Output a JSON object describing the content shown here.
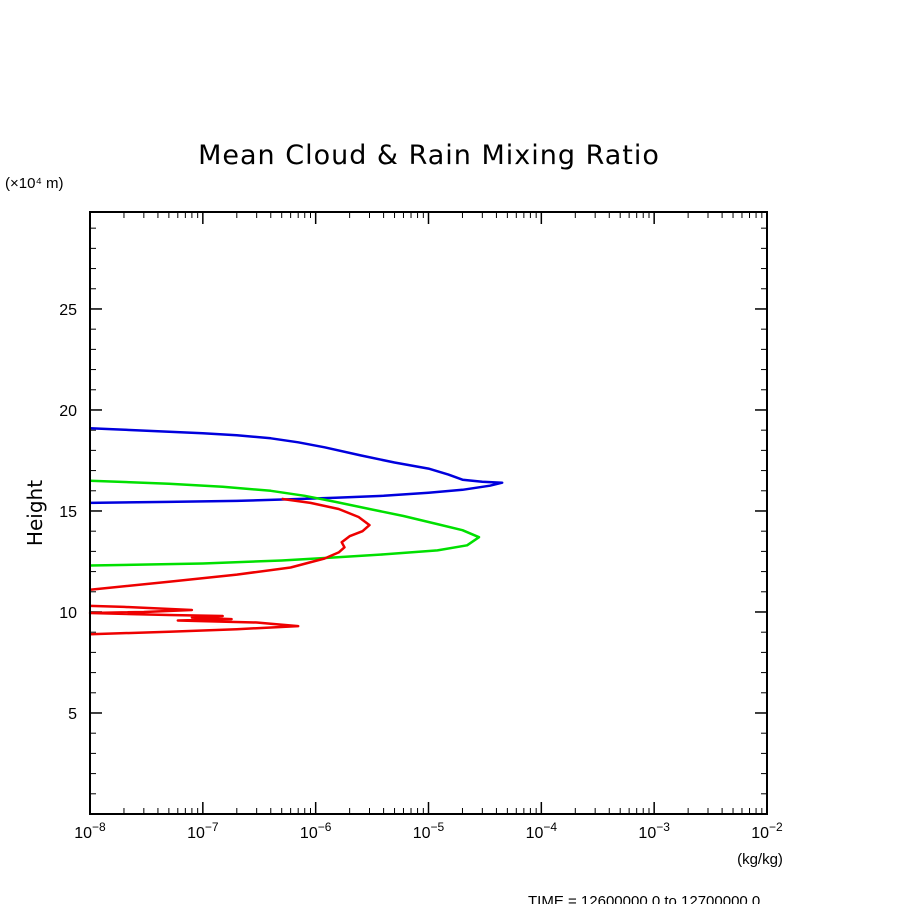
{
  "chart_data": {
    "type": "line",
    "title": "Mean Cloud & Rain Mixing Ratio",
    "xlabel": "(kg/kg)",
    "ylabel": "Height",
    "y_unit_label": "(×10⁴ m)",
    "x_scale": "log",
    "xlim": [
      1e-08,
      0.01
    ],
    "ylim": [
      0,
      29.8
    ],
    "grid": false,
    "x_tick_labels": [
      {
        "value": 1e-08,
        "base": "10",
        "exp": "−8"
      },
      {
        "value": 1e-07,
        "base": "10",
        "exp": "−7"
      },
      {
        "value": 1e-06,
        "base": "10",
        "exp": "−6"
      },
      {
        "value": 1e-05,
        "base": "10",
        "exp": "−5"
      },
      {
        "value": 0.0001,
        "base": "10",
        "exp": "−4"
      },
      {
        "value": 0.001,
        "base": "10",
        "exp": "−3"
      },
      {
        "value": 0.01,
        "base": "10",
        "exp": "−2"
      }
    ],
    "y_tick_labels": [
      "5",
      "10",
      "15",
      "20",
      "25"
    ],
    "y_tick_values": [
      5,
      10,
      15,
      20,
      25
    ],
    "footer": "TIME = 12600000.0 to 12700000.0",
    "series": [
      {
        "color": "#0000dd",
        "points": [
          [
            1e-08,
            19.1
          ],
          [
            1.6e-08,
            19.05
          ],
          [
            4e-08,
            18.95
          ],
          [
            1e-07,
            18.85
          ],
          [
            2e-07,
            18.75
          ],
          [
            4e-07,
            18.6
          ],
          [
            7e-07,
            18.4
          ],
          [
            1.2e-06,
            18.15
          ],
          [
            2.5e-06,
            17.75
          ],
          [
            5e-06,
            17.4
          ],
          [
            1e-05,
            17.1
          ],
          [
            1.5e-05,
            16.8
          ],
          [
            2e-05,
            16.55
          ],
          [
            3e-05,
            16.45
          ],
          [
            4.5e-05,
            16.4
          ],
          [
            3.5e-05,
            16.25
          ],
          [
            2e-05,
            16.05
          ],
          [
            1e-05,
            15.9
          ],
          [
            4e-06,
            15.75
          ],
          [
            1.5e-06,
            15.65
          ],
          [
            6e-07,
            15.58
          ],
          [
            2e-07,
            15.5
          ],
          [
            5e-08,
            15.45
          ],
          [
            1e-08,
            15.4
          ]
        ]
      },
      {
        "color": "#00e000",
        "points": [
          [
            1e-08,
            16.5
          ],
          [
            5e-08,
            16.35
          ],
          [
            1.5e-07,
            16.2
          ],
          [
            4e-07,
            16.0
          ],
          [
            8e-07,
            15.75
          ],
          [
            1.5e-06,
            15.45
          ],
          [
            3e-06,
            15.1
          ],
          [
            6e-06,
            14.75
          ],
          [
            1.2e-05,
            14.35
          ],
          [
            2e-05,
            14.05
          ],
          [
            2.8e-05,
            13.7
          ],
          [
            2.2e-05,
            13.3
          ],
          [
            1.2e-05,
            13.05
          ],
          [
            4e-06,
            12.85
          ],
          [
            1.5e-06,
            12.7
          ],
          [
            5e-07,
            12.55
          ],
          [
            1e-07,
            12.4
          ],
          [
            1e-08,
            12.3
          ]
        ]
      },
      {
        "color": "#ee0000",
        "points": [
          [
            5e-07,
            15.6
          ],
          [
            9e-07,
            15.4
          ],
          [
            1.6e-06,
            15.1
          ],
          [
            2.4e-06,
            14.7
          ],
          [
            3e-06,
            14.3
          ],
          [
            2.6e-06,
            14.0
          ],
          [
            2e-06,
            13.75
          ],
          [
            1.7e-06,
            13.45
          ],
          [
            1.8e-06,
            13.2
          ],
          [
            1.6e-06,
            12.95
          ],
          [
            1.2e-06,
            12.65
          ],
          [
            6e-07,
            12.2
          ],
          [
            2e-07,
            11.85
          ],
          [
            5e-08,
            11.5
          ],
          [
            1e-08,
            11.1
          ]
        ]
      },
      {
        "color": "#ee0000",
        "points": [
          [
            1e-08,
            10.3
          ],
          [
            2e-08,
            10.25
          ],
          [
            8e-08,
            10.1
          ],
          [
            3e-08,
            10.0
          ],
          [
            1e-08,
            9.95
          ],
          [
            5e-08,
            9.85
          ],
          [
            1.5e-07,
            9.8
          ],
          [
            8e-08,
            9.72
          ],
          [
            1.8e-07,
            9.65
          ],
          [
            6e-08,
            9.58
          ],
          [
            3e-07,
            9.48
          ],
          [
            4e-07,
            9.42
          ],
          [
            7e-07,
            9.3
          ],
          [
            2e-07,
            9.15
          ],
          [
            5e-08,
            9.02
          ],
          [
            1e-08,
            8.9
          ]
        ]
      }
    ]
  }
}
